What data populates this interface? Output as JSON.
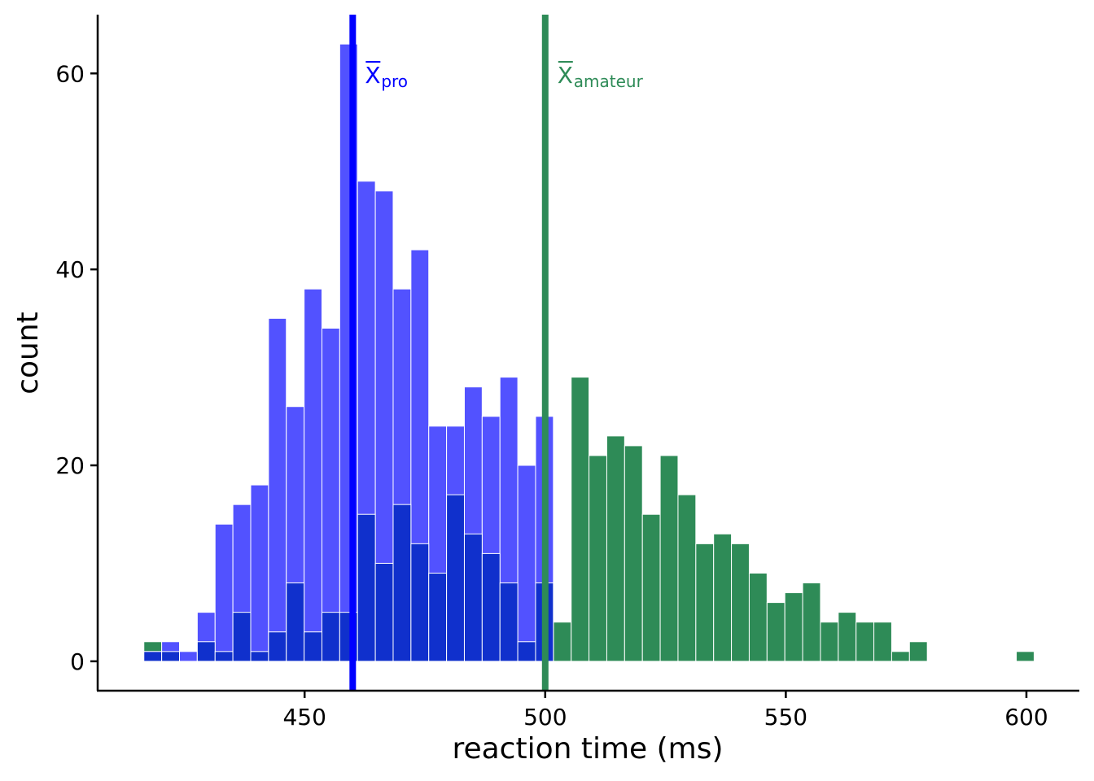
{
  "chart_data": {
    "type": "bar",
    "xlabel": "reaction time (ms)",
    "ylabel": "count",
    "xlim": [
      407,
      611
    ],
    "ylim": [
      -3,
      66
    ],
    "x_ticks": [
      450,
      500,
      550,
      600
    ],
    "y_ticks": [
      0,
      20,
      40,
      60
    ],
    "bin_width": 3.7,
    "colors": {
      "pro": "#0000FF",
      "amateur": "#2E8B57",
      "overlap": "#1030CC"
    },
    "series": [
      {
        "key": "amateur",
        "bin_start": [
          416.6,
          420.3,
          424.0,
          427.7,
          431.4,
          435.1,
          438.8,
          442.5,
          446.2,
          449.9,
          453.6,
          457.3,
          461.0,
          464.7,
          468.4,
          472.1,
          475.8,
          479.5,
          483.2,
          486.9,
          490.6,
          494.3,
          498.0,
          501.7,
          505.4,
          509.1,
          512.8,
          516.5,
          520.2,
          523.9,
          527.6,
          531.3,
          535.0,
          538.7,
          542.4,
          546.1,
          549.8,
          553.5,
          557.2,
          560.9,
          564.6,
          568.3,
          572.0,
          575.7,
          597.9
        ],
        "values": [
          2,
          1,
          0,
          2,
          1,
          5,
          1,
          3,
          8,
          3,
          5,
          5,
          15,
          10,
          16,
          12,
          9,
          17,
          13,
          11,
          8,
          2,
          8,
          4,
          29,
          21,
          23,
          22,
          15,
          21,
          17,
          12,
          13,
          12,
          9,
          6,
          7,
          8,
          4,
          5,
          4,
          4,
          1,
          2,
          1
        ]
      },
      {
        "key": "pro",
        "bin_start": [
          416.6,
          420.3,
          424.0,
          427.7,
          431.4,
          435.1,
          438.8,
          442.5,
          446.2,
          449.9,
          453.6,
          457.3,
          461.0,
          464.7,
          468.4,
          472.1,
          475.8,
          479.5,
          483.2,
          486.9,
          490.6,
          494.3,
          498.0
        ],
        "values": [
          1,
          2,
          1,
          5,
          14,
          16,
          18,
          35,
          26,
          38,
          34,
          63,
          49,
          48,
          38,
          42,
          24,
          24,
          28,
          25,
          29,
          20,
          25
        ]
      }
    ],
    "mean_lines": [
      {
        "key": "pro",
        "x": 460,
        "label": "X",
        "label_sub": "pro"
      },
      {
        "key": "amateur",
        "x": 500,
        "label": "X",
        "label_sub": "amateur"
      }
    ]
  }
}
